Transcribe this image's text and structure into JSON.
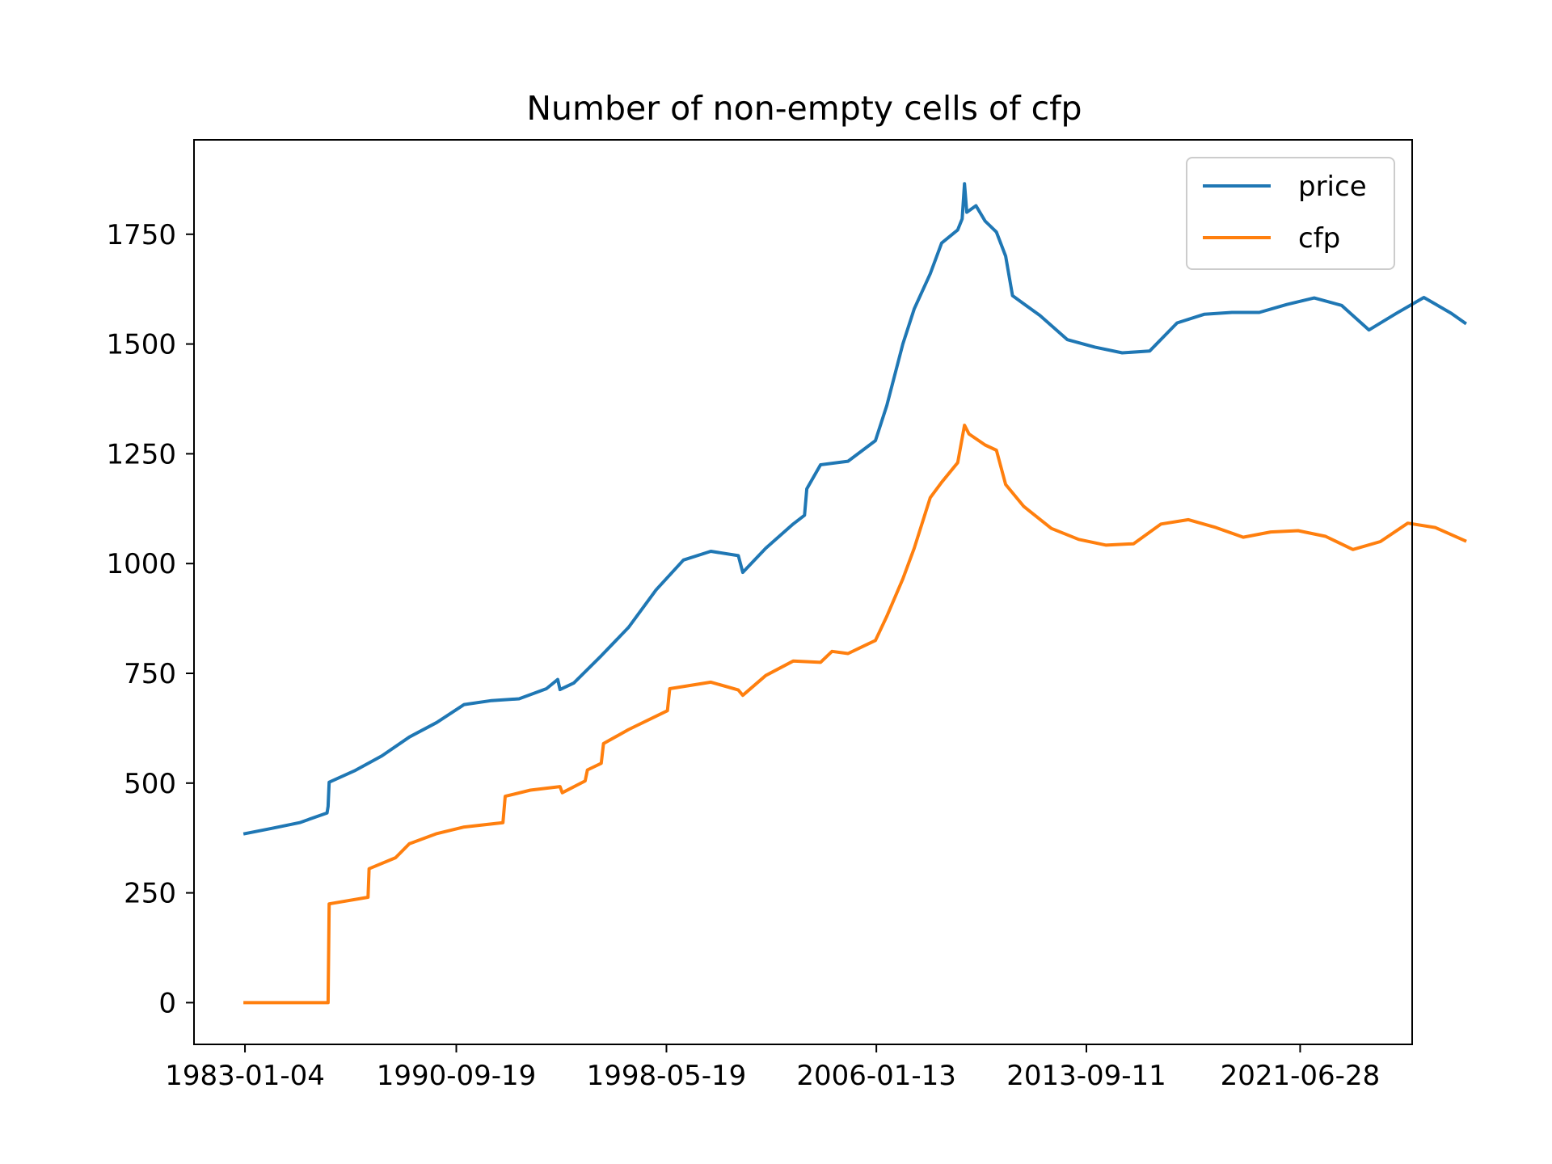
{
  "chart_data": {
    "type": "line",
    "title": "Number of non-empty cells of cfp",
    "xlabel": "",
    "ylabel": "",
    "x_type": "date",
    "xlim": [
      "1981-02-24",
      "2025-07-29"
    ],
    "ylim": [
      -95,
      1965
    ],
    "x_ticks": [
      "1983-01-04",
      "1990-09-19",
      "1998-05-19",
      "2006-01-13",
      "2013-09-11",
      "2021-06-28"
    ],
    "y_ticks": [
      0,
      250,
      500,
      750,
      1000,
      1250,
      1500,
      1750
    ],
    "legend": {
      "position": "top-right",
      "entries": [
        "price",
        "cfp"
      ]
    },
    "grid": false,
    "series": [
      {
        "name": "price",
        "color": "#1f77b4",
        "points": [
          [
            "1983-01-04",
            385
          ],
          [
            "1984-01-01",
            397
          ],
          [
            "1985-01-01",
            410
          ],
          [
            "1986-01-01",
            432
          ],
          [
            "1986-01-15",
            447
          ],
          [
            "1986-01-29",
            502
          ],
          [
            "1987-01-01",
            528
          ],
          [
            "1988-01-01",
            562
          ],
          [
            "1989-01-01",
            605
          ],
          [
            "1990-01-01",
            638
          ],
          [
            "1991-01-01",
            679
          ],
          [
            "1992-01-01",
            688
          ],
          [
            "1993-01-01",
            692
          ],
          [
            "1994-01-01",
            715
          ],
          [
            "1994-06-01",
            736
          ],
          [
            "1994-07-01",
            713
          ],
          [
            "1995-01-01",
            728
          ],
          [
            "1996-01-01",
            790
          ],
          [
            "1997-01-01",
            855
          ],
          [
            "1998-01-01",
            940
          ],
          [
            "1999-01-01",
            1008
          ],
          [
            "2000-01-01",
            1028
          ],
          [
            "2001-01-01",
            1018
          ],
          [
            "2001-03-01",
            980
          ],
          [
            "2002-01-01",
            1035
          ],
          [
            "2003-01-01",
            1090
          ],
          [
            "2003-06-01",
            1110
          ],
          [
            "2003-07-01",
            1170
          ],
          [
            "2004-01-01",
            1225
          ],
          [
            "2005-01-01",
            1233
          ],
          [
            "2006-01-01",
            1280
          ],
          [
            "2006-06-01",
            1360
          ],
          [
            "2007-01-01",
            1500
          ],
          [
            "2007-06-01",
            1580
          ],
          [
            "2008-01-01",
            1660
          ],
          [
            "2008-06-01",
            1730
          ],
          [
            "2009-01-01",
            1760
          ],
          [
            "2009-03-01",
            1785
          ],
          [
            "2009-04-01",
            1865
          ],
          [
            "2009-05-01",
            1800
          ],
          [
            "2009-09-01",
            1815
          ],
          [
            "2010-01-01",
            1780
          ],
          [
            "2010-06-01",
            1755
          ],
          [
            "2010-10-01",
            1700
          ],
          [
            "2011-01-01",
            1610
          ],
          [
            "2012-01-01",
            1565
          ],
          [
            "2013-01-01",
            1510
          ],
          [
            "2014-01-01",
            1493
          ],
          [
            "2015-01-01",
            1480
          ],
          [
            "2016-01-01",
            1484
          ],
          [
            "2017-01-01",
            1548
          ],
          [
            "2018-01-01",
            1568
          ],
          [
            "2019-01-01",
            1572
          ],
          [
            "2020-01-01",
            1572
          ],
          [
            "2021-01-01",
            1590
          ],
          [
            "2022-01-01",
            1605
          ],
          [
            "2023-01-01",
            1588
          ],
          [
            "2024-01-01",
            1532
          ],
          [
            "2025-01-01",
            1570
          ],
          [
            "2026-01-01",
            1606
          ],
          [
            "2027-01-01",
            1570
          ],
          [
            "2027-07-01",
            1548
          ]
        ]
      },
      {
        "name": "cfp",
        "color": "#ff7f0e",
        "points": [
          [
            "1983-01-04",
            0
          ],
          [
            "1986-01-15",
            0
          ],
          [
            "1986-01-29",
            225
          ],
          [
            "1987-07-01",
            240
          ],
          [
            "1987-07-15",
            305
          ],
          [
            "1988-07-01",
            330
          ],
          [
            "1989-01-01",
            362
          ],
          [
            "1990-01-01",
            385
          ],
          [
            "1991-01-01",
            400
          ],
          [
            "1992-06-01",
            410
          ],
          [
            "1992-07-01",
            470
          ],
          [
            "1993-06-01",
            484
          ],
          [
            "1994-07-01",
            492
          ],
          [
            "1994-08-01",
            478
          ],
          [
            "1995-06-01",
            505
          ],
          [
            "1995-07-01",
            530
          ],
          [
            "1996-01-01",
            545
          ],
          [
            "1996-02-01",
            590
          ],
          [
            "1997-01-01",
            622
          ],
          [
            "1998-06-01",
            665
          ],
          [
            "1998-07-01",
            715
          ],
          [
            "2000-01-01",
            730
          ],
          [
            "2001-01-01",
            712
          ],
          [
            "2001-03-01",
            700
          ],
          [
            "2002-01-01",
            745
          ],
          [
            "2003-01-01",
            778
          ],
          [
            "2004-01-01",
            775
          ],
          [
            "2004-06-01",
            800
          ],
          [
            "2005-01-01",
            795
          ],
          [
            "2005-07-01",
            810
          ],
          [
            "2006-01-01",
            825
          ],
          [
            "2006-06-01",
            880
          ],
          [
            "2007-01-01",
            965
          ],
          [
            "2007-06-01",
            1035
          ],
          [
            "2008-01-01",
            1150
          ],
          [
            "2008-06-01",
            1185
          ],
          [
            "2009-01-01",
            1230
          ],
          [
            "2009-04-01",
            1315
          ],
          [
            "2009-06-01",
            1295
          ],
          [
            "2010-01-01",
            1270
          ],
          [
            "2010-06-01",
            1258
          ],
          [
            "2010-10-01",
            1180
          ],
          [
            "2011-06-01",
            1130
          ],
          [
            "2012-06-01",
            1080
          ],
          [
            "2013-06-01",
            1055
          ],
          [
            "2014-06-01",
            1042
          ],
          [
            "2015-06-01",
            1045
          ],
          [
            "2016-06-01",
            1090
          ],
          [
            "2017-06-01",
            1100
          ],
          [
            "2018-06-01",
            1082
          ],
          [
            "2019-06-01",
            1060
          ],
          [
            "2020-06-01",
            1072
          ],
          [
            "2021-06-01",
            1075
          ],
          [
            "2022-06-01",
            1062
          ],
          [
            "2023-06-01",
            1032
          ],
          [
            "2024-06-01",
            1050
          ],
          [
            "2025-06-01",
            1092
          ],
          [
            "2026-06-01",
            1082
          ],
          [
            "2027-07-01",
            1052
          ]
        ]
      }
    ]
  }
}
